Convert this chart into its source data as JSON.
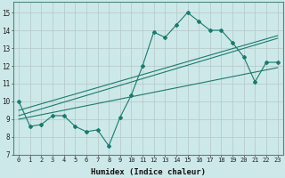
{
  "xlabel": "Humidex (Indice chaleur)",
  "bg_color": "#cde8e8",
  "grid_color": "#c8d8d8",
  "line_color": "#1a7a6e",
  "xlim": [
    -0.5,
    23.5
  ],
  "ylim": [
    7,
    15.6
  ],
  "xticks": [
    0,
    1,
    2,
    3,
    4,
    5,
    6,
    7,
    8,
    9,
    10,
    11,
    12,
    13,
    14,
    15,
    16,
    17,
    18,
    19,
    20,
    21,
    22,
    23
  ],
  "yticks": [
    7,
    8,
    9,
    10,
    11,
    12,
    13,
    14,
    15
  ],
  "series1_x": [
    0,
    1,
    2,
    3,
    4,
    5,
    6,
    7,
    8,
    9,
    10,
    11,
    12,
    13,
    14,
    15,
    16,
    17,
    18,
    19,
    20,
    21,
    22,
    23
  ],
  "series1_y": [
    10.0,
    8.6,
    8.7,
    9.2,
    9.2,
    8.6,
    8.3,
    8.4,
    7.5,
    9.1,
    10.35,
    12.0,
    13.9,
    13.6,
    14.3,
    15.0,
    14.5,
    14.0,
    14.0,
    13.3,
    12.5,
    11.1,
    12.2,
    12.2
  ],
  "line1_x": [
    0,
    23
  ],
  "line1_y": [
    9.5,
    13.7
  ],
  "line2_x": [
    0,
    23
  ],
  "line2_y": [
    9.2,
    13.55
  ],
  "line3_x": [
    0,
    23
  ],
  "line3_y": [
    9.0,
    11.9
  ]
}
